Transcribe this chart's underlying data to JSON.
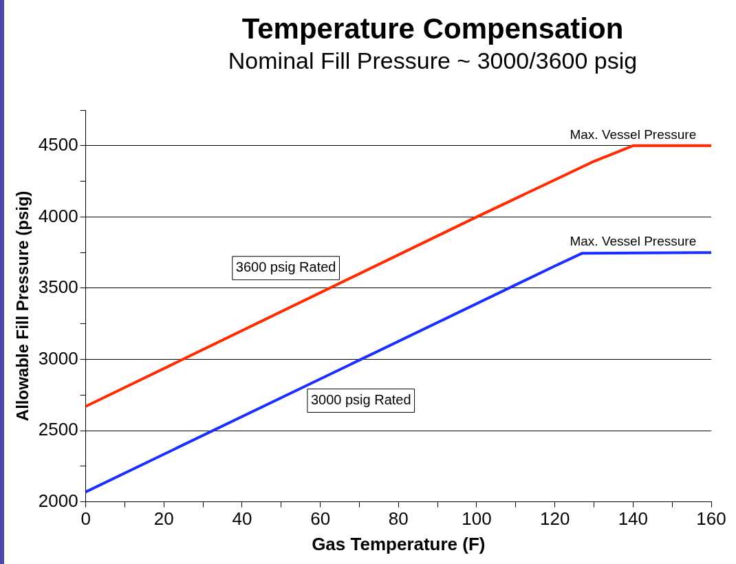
{
  "chart_data": {
    "type": "line",
    "title": "Temperature Compensation",
    "subtitle": "Nominal Fill Pressure ~ 3000/3600 psig",
    "xlabel": "Gas Temperature (F)",
    "ylabel": "Allowable Fill Pressure (psig)",
    "xlim": [
      0,
      160
    ],
    "xticks": [
      0,
      {
        "value": 10,
        "label": null
      },
      20,
      {
        "value": 30,
        "label": null
      },
      40,
      {
        "value": 50,
        "label": null
      },
      60,
      {
        "value": 70,
        "label": null
      },
      80,
      {
        "value": 90,
        "label": null
      },
      100,
      {
        "value": 110,
        "label": null
      },
      120,
      {
        "value": 130,
        "label": null
      },
      140,
      {
        "value": 150,
        "label": null
      },
      160
    ],
    "ylim": [
      2000,
      4750
    ],
    "yticks": [
      2000,
      {
        "value": 2250,
        "label": null
      },
      2500,
      {
        "value": 2750,
        "label": null
      },
      3000,
      {
        "value": 3250,
        "label": null
      },
      3500,
      {
        "value": 3750,
        "label": null
      },
      4000,
      {
        "value": 4250,
        "label": null
      },
      4500,
      {
        "value": 4750,
        "label": null
      }
    ],
    "series": [
      {
        "name": "3600 psig Rated",
        "color": "#ff2a00",
        "x": [
          0,
          100,
          130,
          140,
          160
        ],
        "values": [
          2670,
          4000,
          4390,
          4500,
          4500
        ]
      },
      {
        "name": "3000 psig Rated",
        "color": "#1a2eff",
        "x": [
          0,
          120,
          127,
          160
        ],
        "values": [
          2070,
          3655,
          3745,
          3750
        ]
      }
    ],
    "annotations": [
      {
        "text": "Max. Vessel Pressure",
        "x": 140,
        "y": 4500
      },
      {
        "text": "Max. Vessel Pressure",
        "x": 140,
        "y": 3750
      }
    ],
    "grid": "y",
    "legend": false,
    "marker": "none",
    "line_style": "solid"
  }
}
